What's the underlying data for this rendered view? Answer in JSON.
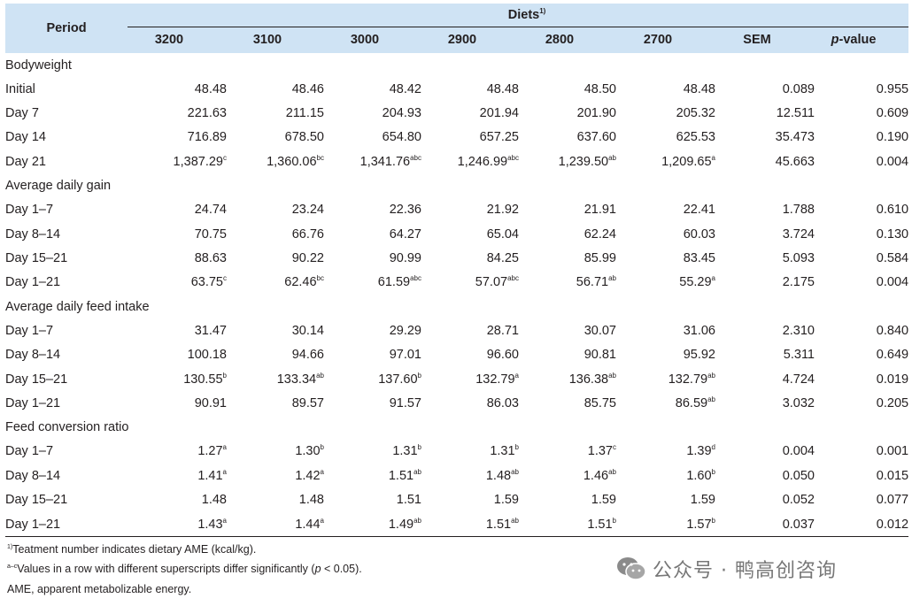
{
  "header": {
    "period": "Period",
    "diets": "Diets",
    "diets_sup": "1)",
    "columns": [
      "3200",
      "3100",
      "3000",
      "2900",
      "2800",
      "2700",
      "SEM"
    ],
    "pvalue_italic": "p",
    "pvalue_rest": "-value"
  },
  "sections": [
    {
      "title": "Bodyweight",
      "rows": [
        {
          "label": "Initial",
          "cells": [
            [
              "48.48",
              ""
            ],
            [
              "48.46",
              ""
            ],
            [
              "48.42",
              ""
            ],
            [
              "48.48",
              ""
            ],
            [
              "48.50",
              ""
            ],
            [
              "48.48",
              ""
            ]
          ],
          "sem": "0.089",
          "p": "0.955"
        },
        {
          "label": "Day 7",
          "cells": [
            [
              "221.63",
              ""
            ],
            [
              "211.15",
              ""
            ],
            [
              "204.93",
              ""
            ],
            [
              "201.94",
              ""
            ],
            [
              "201.90",
              ""
            ],
            [
              "205.32",
              ""
            ]
          ],
          "sem": "12.511",
          "p": "0.609"
        },
        {
          "label": "Day 14",
          "cells": [
            [
              "716.89",
              ""
            ],
            [
              "678.50",
              ""
            ],
            [
              "654.80",
              ""
            ],
            [
              "657.25",
              ""
            ],
            [
              "637.60",
              ""
            ],
            [
              "625.53",
              ""
            ]
          ],
          "sem": "35.473",
          "p": "0.190"
        },
        {
          "label": "Day 21",
          "cells": [
            [
              "1,387.29",
              "c"
            ],
            [
              "1,360.06",
              "bc"
            ],
            [
              "1,341.76",
              "abc"
            ],
            [
              "1,246.99",
              "abc"
            ],
            [
              "1,239.50",
              "ab"
            ],
            [
              "1,209.65",
              "a"
            ]
          ],
          "sem": "45.663",
          "p": "0.004"
        }
      ]
    },
    {
      "title": "Average daily gain",
      "rows": [
        {
          "label": "Day 1–7",
          "cells": [
            [
              "24.74",
              ""
            ],
            [
              "23.24",
              ""
            ],
            [
              "22.36",
              ""
            ],
            [
              "21.92",
              ""
            ],
            [
              "21.91",
              ""
            ],
            [
              "22.41",
              ""
            ]
          ],
          "sem": "1.788",
          "p": "0.610"
        },
        {
          "label": "Day 8–14",
          "cells": [
            [
              "70.75",
              ""
            ],
            [
              "66.76",
              ""
            ],
            [
              "64.27",
              ""
            ],
            [
              "65.04",
              ""
            ],
            [
              "62.24",
              ""
            ],
            [
              "60.03",
              ""
            ]
          ],
          "sem": "3.724",
          "p": "0.130"
        },
        {
          "label": "Day 15–21",
          "cells": [
            [
              "88.63",
              ""
            ],
            [
              "90.22",
              ""
            ],
            [
              "90.99",
              ""
            ],
            [
              "84.25",
              ""
            ],
            [
              "85.99",
              ""
            ],
            [
              "83.45",
              ""
            ]
          ],
          "sem": "5.093",
          "p": "0.584"
        },
        {
          "label": "Day 1–21",
          "cells": [
            [
              "63.75",
              "c"
            ],
            [
              "62.46",
              "bc"
            ],
            [
              "61.59",
              "abc"
            ],
            [
              "57.07",
              "abc"
            ],
            [
              "56.71",
              "ab"
            ],
            [
              "55.29",
              "a"
            ]
          ],
          "sem": "2.175",
          "p": "0.004"
        }
      ]
    },
    {
      "title": "Average daily feed intake",
      "rows": [
        {
          "label": "Day 1–7",
          "cells": [
            [
              "31.47",
              ""
            ],
            [
              "30.14",
              ""
            ],
            [
              "29.29",
              ""
            ],
            [
              "28.71",
              ""
            ],
            [
              "30.07",
              ""
            ],
            [
              "31.06",
              ""
            ]
          ],
          "sem": "2.310",
          "p": "0.840"
        },
        {
          "label": "Day 8–14",
          "cells": [
            [
              "100.18",
              ""
            ],
            [
              "94.66",
              ""
            ],
            [
              "97.01",
              ""
            ],
            [
              "96.60",
              ""
            ],
            [
              "90.81",
              ""
            ],
            [
              "95.92",
              ""
            ]
          ],
          "sem": "5.311",
          "p": "0.649"
        },
        {
          "label": "Day 15–21",
          "cells": [
            [
              "130.55",
              "b"
            ],
            [
              "133.34",
              "ab"
            ],
            [
              "137.60",
              "b"
            ],
            [
              "132.79",
              "a"
            ],
            [
              "136.38",
              "ab"
            ],
            [
              "132.79",
              "ab"
            ]
          ],
          "sem": "4.724",
          "p": "0.019"
        },
        {
          "label": "Day 1–21",
          "cells": [
            [
              "90.91",
              ""
            ],
            [
              "89.57",
              ""
            ],
            [
              "91.57",
              ""
            ],
            [
              "86.03",
              ""
            ],
            [
              "85.75",
              ""
            ],
            [
              "86.59",
              "ab"
            ]
          ],
          "sem": "3.032",
          "p": "0.205"
        }
      ]
    },
    {
      "title": "Feed conversion ratio",
      "rows": [
        {
          "label": "Day 1–7",
          "cells": [
            [
              "1.27",
              "a"
            ],
            [
              "1.30",
              "b"
            ],
            [
              "1.31",
              "b"
            ],
            [
              "1.31",
              "b"
            ],
            [
              "1.37",
              "c"
            ],
            [
              "1.39",
              "d"
            ]
          ],
          "sem": "0.004",
          "p": "0.001"
        },
        {
          "label": "Day 8–14",
          "cells": [
            [
              "1.41",
              "a"
            ],
            [
              "1.42",
              "a"
            ],
            [
              "1.51",
              "ab"
            ],
            [
              "1.48",
              "ab"
            ],
            [
              "1.46",
              "ab"
            ],
            [
              "1.60",
              "b"
            ]
          ],
          "sem": "0.050",
          "p": "0.015"
        },
        {
          "label": "Day 15–21",
          "cells": [
            [
              "1.48",
              ""
            ],
            [
              "1.48",
              ""
            ],
            [
              "1.51",
              ""
            ],
            [
              "1.59",
              ""
            ],
            [
              "1.59",
              ""
            ],
            [
              "1.59",
              ""
            ]
          ],
          "sem": "0.052",
          "p": "0.077"
        },
        {
          "label": "Day 1–21",
          "cells": [
            [
              "1.43",
              "a"
            ],
            [
              "1.44",
              "a"
            ],
            [
              "1.49",
              "ab"
            ],
            [
              "1.51",
              "ab"
            ],
            [
              "1.51",
              "b"
            ],
            [
              "1.57",
              "b"
            ]
          ],
          "sem": "0.037",
          "p": "0.012"
        }
      ]
    }
  ],
  "footnotes": {
    "note1_sup": "1)",
    "note1_text": "Teatment number indicates dietary AME (kcal/kg).",
    "note2_sup": "a–c",
    "note2_text_a": "Values in a row with different superscripts differ significantly (",
    "note2_italic": "p",
    "note2_text_b": " < 0.05).",
    "note3_text": "AME, apparent metabolizable energy."
  },
  "watermark": {
    "text": "公众号 · 鸭高创咨询",
    "icon": "wechat-icon",
    "color": "#777777"
  }
}
